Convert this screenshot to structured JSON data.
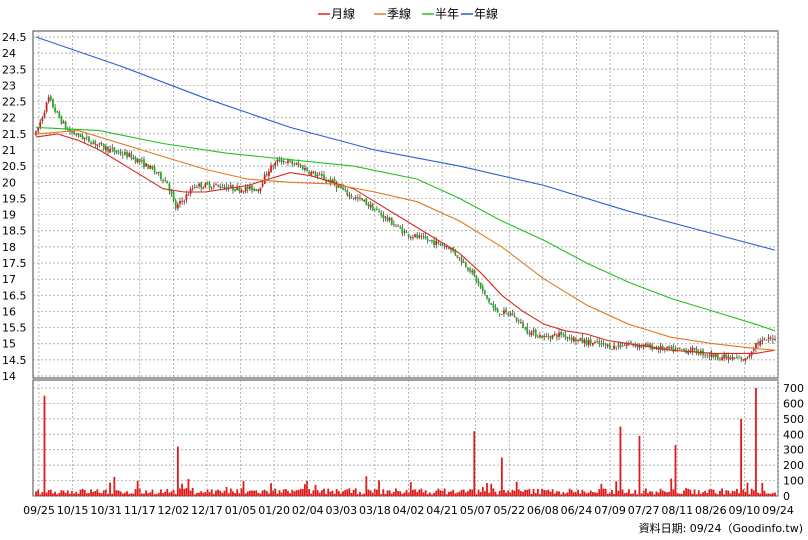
{
  "chart_data": {
    "type": "candlestick-with-volume",
    "legend": [
      {
        "label": "月線",
        "color": "#d62a1e"
      },
      {
        "label": "季線",
        "color": "#e07a1f"
      },
      {
        "label": "半年",
        "color": "#22c222"
      },
      {
        "label": "年線",
        "color": "#2a5fd6"
      }
    ],
    "price_axis": {
      "min": 14,
      "max": 24.5,
      "ticks": [
        "24.5",
        "24",
        "23.5",
        "23",
        "22.5",
        "22",
        "21.5",
        "21",
        "20.5",
        "20",
        "19.5",
        "19",
        "18.5",
        "18",
        "17.5",
        "17",
        "16.5",
        "16",
        "15.5",
        "15",
        "14.5",
        "14"
      ]
    },
    "volume_axis": {
      "min": 0,
      "max": 700,
      "ticks": [
        "700",
        "600",
        "500",
        "400",
        "300",
        "200",
        "100",
        "0"
      ]
    },
    "x_labels": [
      "09/25",
      "10/15",
      "10/31",
      "11/17",
      "12/02",
      "12/17",
      "01/05",
      "01/20",
      "02/04",
      "03/03",
      "03/18",
      "04/02",
      "04/21",
      "05/07",
      "05/22",
      "06/08",
      "06/24",
      "07/09",
      "07/27",
      "08/11",
      "08/26",
      "09/10",
      "09/24"
    ],
    "ma_series": [
      {
        "name": "月線",
        "color": "#d62a1e",
        "points": [
          [
            0,
            21.4
          ],
          [
            10,
            21.5
          ],
          [
            20,
            21.3
          ],
          [
            30,
            21.0
          ],
          [
            40,
            20.6
          ],
          [
            50,
            20.2
          ],
          [
            60,
            19.8
          ],
          [
            70,
            19.7
          ],
          [
            80,
            19.7
          ],
          [
            90,
            19.8
          ],
          [
            100,
            19.9
          ],
          [
            110,
            20.1
          ],
          [
            120,
            20.3
          ],
          [
            130,
            20.2
          ],
          [
            140,
            20.0
          ],
          [
            150,
            19.8
          ],
          [
            160,
            19.4
          ],
          [
            170,
            19.0
          ],
          [
            180,
            18.6
          ],
          [
            190,
            18.2
          ],
          [
            200,
            17.8
          ],
          [
            210,
            17.2
          ],
          [
            220,
            16.5
          ],
          [
            230,
            16.0
          ],
          [
            240,
            15.6
          ],
          [
            250,
            15.4
          ],
          [
            260,
            15.3
          ],
          [
            270,
            15.1
          ],
          [
            280,
            15.0
          ],
          [
            290,
            14.9
          ],
          [
            300,
            14.8
          ],
          [
            310,
            14.75
          ],
          [
            320,
            14.7
          ],
          [
            330,
            14.7
          ],
          [
            340,
            14.7
          ],
          [
            349,
            14.8
          ]
        ]
      },
      {
        "name": "季線",
        "color": "#e07a1f",
        "points": [
          [
            0,
            21.5
          ],
          [
            20,
            21.6
          ],
          [
            40,
            21.2
          ],
          [
            60,
            20.8
          ],
          [
            80,
            20.4
          ],
          [
            100,
            20.1
          ],
          [
            120,
            20.0
          ],
          [
            140,
            19.95
          ],
          [
            160,
            19.7
          ],
          [
            180,
            19.4
          ],
          [
            200,
            18.8
          ],
          [
            220,
            18.0
          ],
          [
            240,
            17.0
          ],
          [
            260,
            16.2
          ],
          [
            280,
            15.6
          ],
          [
            300,
            15.2
          ],
          [
            320,
            15.0
          ],
          [
            340,
            14.85
          ],
          [
            349,
            14.8
          ]
        ]
      },
      {
        "name": "半年",
        "color": "#22c222",
        "points": [
          [
            0,
            21.7
          ],
          [
            30,
            21.6
          ],
          [
            60,
            21.2
          ],
          [
            90,
            20.9
          ],
          [
            120,
            20.7
          ],
          [
            150,
            20.5
          ],
          [
            180,
            20.1
          ],
          [
            200,
            19.5
          ],
          [
            220,
            18.8
          ],
          [
            240,
            18.2
          ],
          [
            260,
            17.5
          ],
          [
            280,
            16.9
          ],
          [
            300,
            16.4
          ],
          [
            320,
            16.0
          ],
          [
            340,
            15.6
          ],
          [
            349,
            15.4
          ]
        ]
      },
      {
        "name": "年線",
        "color": "#2a5fd6",
        "points": [
          [
            0,
            24.5
          ],
          [
            40,
            23.6
          ],
          [
            80,
            22.6
          ],
          [
            120,
            21.7
          ],
          [
            160,
            21.0
          ],
          [
            200,
            20.5
          ],
          [
            240,
            19.9
          ],
          [
            280,
            19.1
          ],
          [
            320,
            18.4
          ],
          [
            349,
            17.9
          ]
        ]
      }
    ],
    "source_label": "資料日期: 09/24（Goodinfo.tw)"
  }
}
